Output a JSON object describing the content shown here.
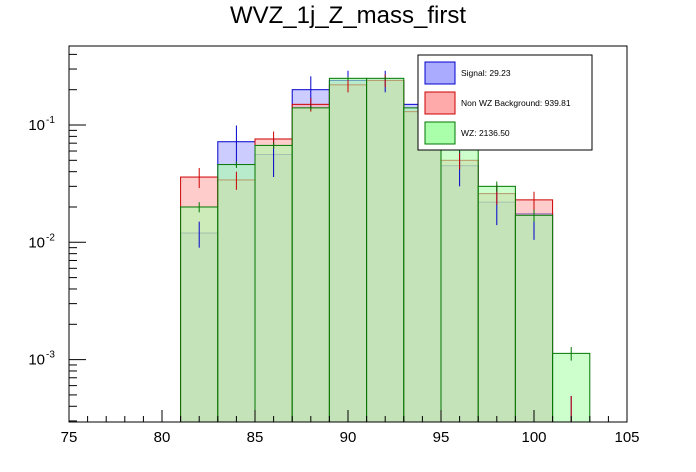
{
  "chart_data": {
    "type": "bar",
    "title": "WVZ_1j_Z_mass_first",
    "xlabel": "",
    "ylabel": "",
    "xlim": [
      75,
      105
    ],
    "ylim": [
      0.00027,
      0.45
    ],
    "log_y": true,
    "grid": false,
    "legend_position": "top-right",
    "x_ticks": [
      "75",
      "80",
      "85",
      "90",
      "95",
      "100",
      "105"
    ],
    "y_ticks": [
      {
        "value": 0.1,
        "base": "10",
        "exp": "-1"
      },
      {
        "value": 0.01,
        "base": "10",
        "exp": "-2"
      },
      {
        "value": 0.001,
        "base": "10",
        "exp": "-3"
      }
    ],
    "bin_edges": [
      81,
      83,
      85,
      87,
      89,
      91,
      93,
      95,
      97,
      99,
      101,
      103
    ],
    "series": [
      {
        "name": "Signal: 29.23",
        "fill": "#aaaaff",
        "line": "#0000cc",
        "values": [
          0.012,
          0.072,
          0.056,
          0.2,
          0.24,
          0.24,
          0.15,
          0.045,
          0.022,
          0.0175,
          0.00029
        ],
        "errors": [
          0.003,
          0.027,
          0.02,
          0.06,
          0.05,
          0.05,
          0.04,
          0.015,
          0.008,
          0.007,
          0.0002
        ]
      },
      {
        "name": "Non WZ Background: 939.81",
        "fill": "#ffaaaa",
        "line": "#cc0000",
        "values": [
          0.036,
          0.034,
          0.076,
          0.15,
          0.22,
          0.24,
          0.13,
          0.05,
          0.026,
          0.023,
          0.00029
        ],
        "errors": [
          0.007,
          0.006,
          0.012,
          0.02,
          0.03,
          0.03,
          0.02,
          0.008,
          0.005,
          0.004,
          0.0002
        ]
      },
      {
        "name": "WZ: 2136.50",
        "fill": "#aaffaa",
        "line": "#007700",
        "values": [
          0.02,
          0.046,
          0.067,
          0.14,
          0.25,
          0.25,
          0.14,
          0.062,
          0.03,
          0.017,
          0.00113
        ],
        "errors": [
          0.002,
          0.003,
          0.004,
          0.006,
          0.008,
          0.008,
          0.006,
          0.004,
          0.003,
          0.002,
          0.00015
        ]
      }
    ]
  }
}
